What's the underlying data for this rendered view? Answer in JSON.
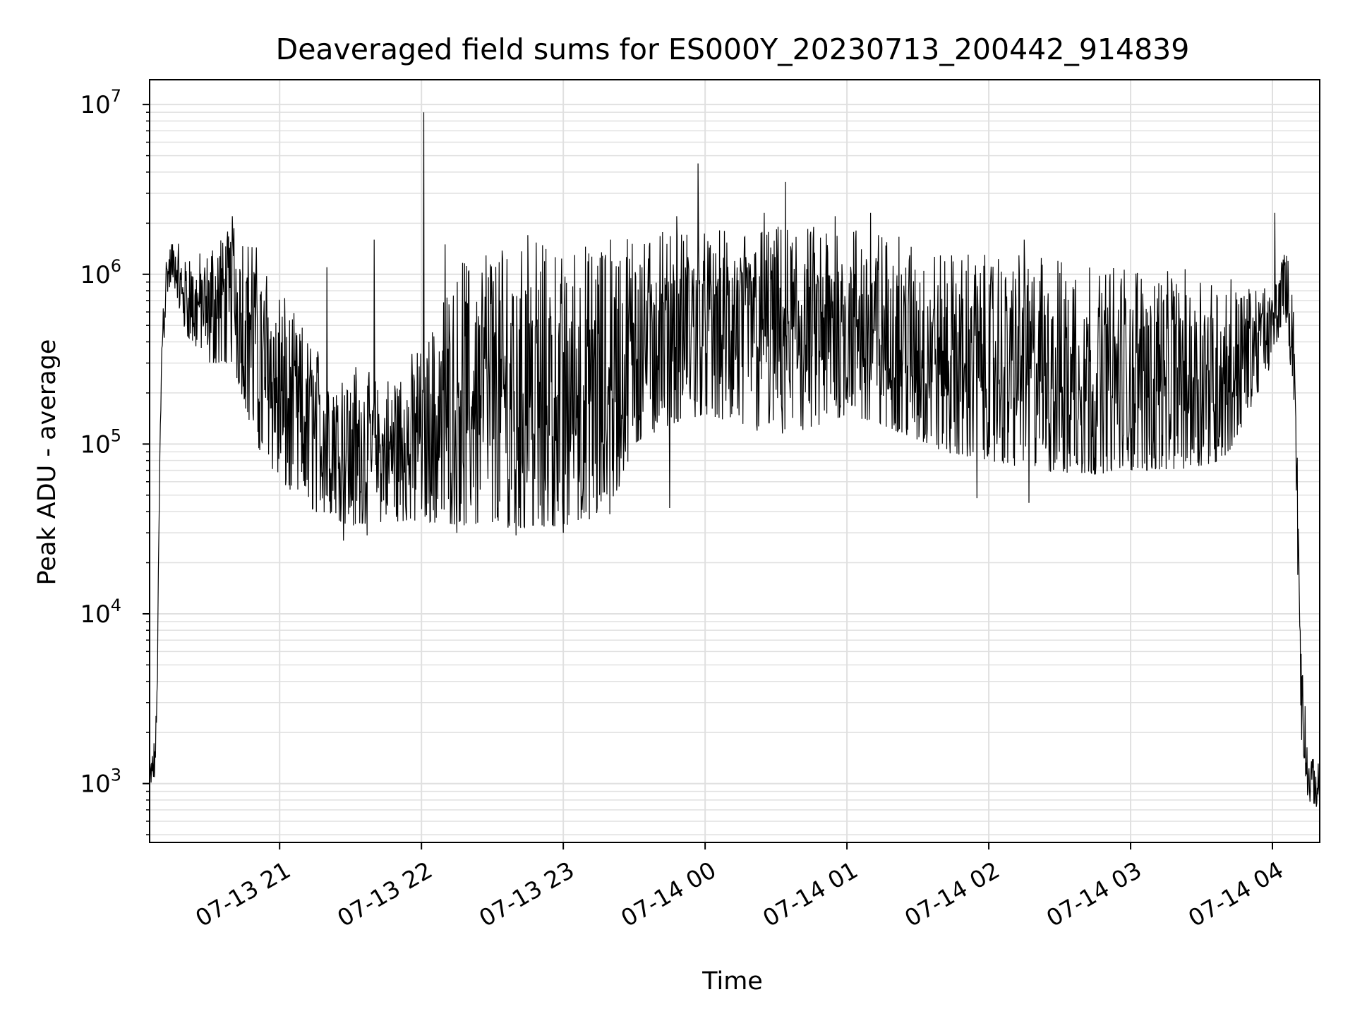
{
  "chart_data": {
    "type": "line",
    "title": "Deaveraged field sums for ES000Y_20230713_200442_914839",
    "xlabel": "Time",
    "ylabel": "Peak ADU - average",
    "yscale": "log",
    "ylim": [
      450,
      14000000
    ],
    "xlim": [
      "2023-07-13 20:05",
      "2023-07-14 04:20"
    ],
    "grid": true,
    "line_color": "#000000",
    "grid_color": "#e0e0e0",
    "x_ticks": [
      {
        "value": "2023-07-13 21:00",
        "label": "07-13 21"
      },
      {
        "value": "2023-07-13 22:00",
        "label": "07-13 22"
      },
      {
        "value": "2023-07-13 23:00",
        "label": "07-13 23"
      },
      {
        "value": "2023-07-14 00:00",
        "label": "07-14 00"
      },
      {
        "value": "2023-07-14 01:00",
        "label": "07-14 01"
      },
      {
        "value": "2023-07-14 02:00",
        "label": "07-14 02"
      },
      {
        "value": "2023-07-14 03:00",
        "label": "07-14 03"
      },
      {
        "value": "2023-07-14 04:00",
        "label": "07-14 04"
      }
    ],
    "y_ticks": [
      {
        "value": 1000,
        "base": "10",
        "exp": "3"
      },
      {
        "value": 10000,
        "base": "10",
        "exp": "4"
      },
      {
        "value": 100000,
        "base": "10",
        "exp": "5"
      },
      {
        "value": 1000000,
        "base": "10",
        "exp": "6"
      },
      {
        "value": 10000000,
        "base": "10",
        "exp": "7"
      }
    ],
    "series": [
      {
        "envelope": [
          {
            "t": "2023-07-13 20:05",
            "low": 800,
            "high": 1500
          },
          {
            "t": "2023-07-13 20:07",
            "low": 1000,
            "high": 1800
          },
          {
            "t": "2023-07-13 20:08",
            "low": 2000,
            "high": 3000
          },
          {
            "t": "2023-07-13 20:10",
            "low": 200000,
            "high": 600000
          },
          {
            "t": "2023-07-13 20:12",
            "low": 700000,
            "high": 1300000
          },
          {
            "t": "2023-07-13 20:15",
            "low": 900000,
            "high": 1700000
          },
          {
            "t": "2023-07-13 20:20",
            "low": 450000,
            "high": 1300000
          },
          {
            "t": "2023-07-13 20:30",
            "low": 300000,
            "high": 1400000
          },
          {
            "t": "2023-07-13 20:40",
            "low": 300000,
            "high": 2200000
          },
          {
            "t": "2023-07-13 20:50",
            "low": 100000,
            "high": 1500000
          },
          {
            "t": "2023-07-13 21:00",
            "low": 60000,
            "high": 800000
          },
          {
            "t": "2023-07-13 21:15",
            "low": 40000,
            "high": 400000
          },
          {
            "t": "2023-07-13 21:30",
            "low": 33000,
            "high": 300000
          },
          {
            "t": "2023-07-13 21:45",
            "low": 35000,
            "high": 250000
          },
          {
            "t": "2023-07-13 22:00",
            "low": 35000,
            "high": 400000
          },
          {
            "t": "2023-07-13 22:20",
            "low": 33000,
            "high": 1400000
          },
          {
            "t": "2023-07-13 22:40",
            "low": 32000,
            "high": 1600000
          },
          {
            "t": "2023-07-13 23:00",
            "low": 33000,
            "high": 1500000
          },
          {
            "t": "2023-07-13 23:20",
            "low": 38000,
            "high": 1600000
          },
          {
            "t": "2023-07-13 23:30",
            "low": 100000,
            "high": 1700000
          },
          {
            "t": "2023-07-13 23:45",
            "low": 130000,
            "high": 1800000
          },
          {
            "t": "2023-07-14 00:00",
            "low": 150000,
            "high": 1800000
          },
          {
            "t": "2023-07-14 00:20",
            "low": 120000,
            "high": 1900000
          },
          {
            "t": "2023-07-14 00:40",
            "low": 110000,
            "high": 2000000
          },
          {
            "t": "2023-07-14 01:00",
            "low": 150000,
            "high": 2000000
          },
          {
            "t": "2023-07-14 01:20",
            "low": 120000,
            "high": 1700000
          },
          {
            "t": "2023-07-14 01:40",
            "low": 90000,
            "high": 1400000
          },
          {
            "t": "2023-07-14 02:00",
            "low": 80000,
            "high": 1300000
          },
          {
            "t": "2023-07-14 02:20",
            "low": 70000,
            "high": 1300000
          },
          {
            "t": "2023-07-14 02:40",
            "low": 65000,
            "high": 1200000
          },
          {
            "t": "2023-07-14 03:00",
            "low": 70000,
            "high": 1100000
          },
          {
            "t": "2023-07-14 03:20",
            "low": 70000,
            "high": 1100000
          },
          {
            "t": "2023-07-14 03:40",
            "low": 80000,
            "high": 1000000
          },
          {
            "t": "2023-07-14 04:00",
            "low": 300000,
            "high": 800000
          },
          {
            "t": "2023-07-14 04:05",
            "low": 600000,
            "high": 1500000
          },
          {
            "t": "2023-07-14 04:09",
            "low": 200000,
            "high": 900000
          },
          {
            "t": "2023-07-14 04:12",
            "low": 2000,
            "high": 10000
          },
          {
            "t": "2023-07-14 04:15",
            "low": 800,
            "high": 1500
          },
          {
            "t": "2023-07-14 04:20",
            "low": 700,
            "high": 1300
          }
        ],
        "spikes": [
          {
            "t": "2023-07-13 20:40",
            "y": 2200000
          },
          {
            "t": "2023-07-13 21:20",
            "y": 1100000
          },
          {
            "t": "2023-07-13 21:40",
            "y": 1600000
          },
          {
            "t": "2023-07-13 22:01",
            "y": 9000000
          },
          {
            "t": "2023-07-13 22:10",
            "y": 1500000
          },
          {
            "t": "2023-07-13 22:45",
            "y": 1700000
          },
          {
            "t": "2023-07-13 23:20",
            "y": 1600000
          },
          {
            "t": "2023-07-13 23:48",
            "y": 2200000
          },
          {
            "t": "2023-07-13 23:57",
            "y": 4500000
          },
          {
            "t": "2023-07-14 00:25",
            "y": 2300000
          },
          {
            "t": "2023-07-14 00:34",
            "y": 3500000
          },
          {
            "t": "2023-07-14 00:55",
            "y": 2200000
          },
          {
            "t": "2023-07-14 01:10",
            "y": 2300000
          },
          {
            "t": "2023-07-14 02:15",
            "y": 1600000
          },
          {
            "t": "2023-07-14 04:01",
            "y": 2300000
          }
        ],
        "dips": [
          {
            "t": "2023-07-13 21:27",
            "y": 27000
          },
          {
            "t": "2023-07-13 21:37",
            "y": 29000
          },
          {
            "t": "2023-07-13 22:15",
            "y": 30000
          },
          {
            "t": "2023-07-13 22:40",
            "y": 29000
          },
          {
            "t": "2023-07-13 23:00",
            "y": 30000
          },
          {
            "t": "2023-07-13 23:45",
            "y": 42000
          },
          {
            "t": "2023-07-14 01:55",
            "y": 48000
          },
          {
            "t": "2023-07-14 02:17",
            "y": 45000
          }
        ]
      }
    ]
  }
}
